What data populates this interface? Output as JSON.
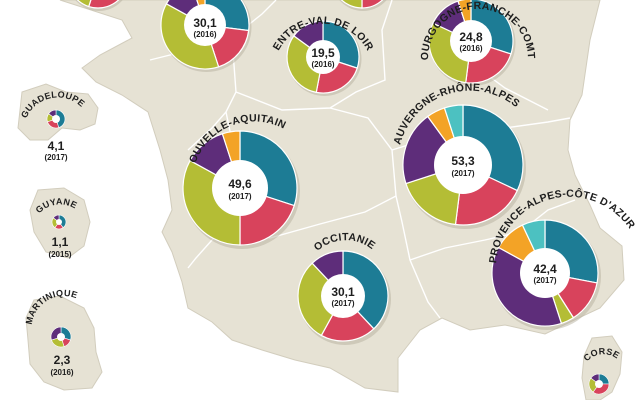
{
  "colors": {
    "background": "#ffffff",
    "land": "#e6e2d4",
    "land_stroke": "#d2cdbd",
    "border": "#ffffff",
    "segments": [
      "#1d7c95",
      "#d8435c",
      "#b4bd35",
      "#5e2d7a",
      "#f3a326",
      "#4cc1c1",
      "#9c2660"
    ]
  },
  "regions": [
    {
      "id": "nord-partial",
      "name": "",
      "value": "",
      "year": "",
      "segments": [
        0.35,
        0.2,
        0.35,
        0.1
      ]
    },
    {
      "id": "ile-de-france-partial",
      "name": "",
      "value": "",
      "year": "",
      "segments": [
        0.25,
        0.25,
        0.3,
        0.2
      ]
    },
    {
      "id": "normandie",
      "name": "",
      "value": "30,1",
      "year": "(2016)",
      "segments": [
        0.27,
        0.18,
        0.38,
        0.12,
        0.05
      ]
    },
    {
      "id": "centre-val-de-loire",
      "name": "CENTRE-VAL DE LOIRE",
      "value": "19,5",
      "year": "(2016)",
      "segments": [
        0.3,
        0.23,
        0.32,
        0.15
      ]
    },
    {
      "id": "bourgogne-franche-comte",
      "name": "BOURGOGNE-FRANCHE-COMTÉ",
      "value": "24,8",
      "year": "(2016)",
      "segments": [
        0.3,
        0.22,
        0.3,
        0.13,
        0.05
      ]
    },
    {
      "id": "nouvelle-aquitaine",
      "name": "NOUVELLE-AQUITAINE",
      "value": "49,6",
      "year": "(2017)",
      "segments": [
        0.3,
        0.2,
        0.33,
        0.12,
        0.05
      ]
    },
    {
      "id": "auvergne-rhone-alpes",
      "name": "AUVERGNE-RHÔNE-ALPES",
      "value": "53,3",
      "year": "(2017)",
      "segments": [
        0.32,
        0.2,
        0.18,
        0.2,
        0.05,
        0.05
      ]
    },
    {
      "id": "occitanie",
      "name": "OCCITANIE",
      "value": "30,1",
      "year": "(2017)",
      "segments": [
        0.38,
        0.2,
        0.3,
        0.12
      ]
    },
    {
      "id": "provence-alpes-cote-dazur",
      "name": "PROVENCE-ALPES-CÔTE D'AZUR",
      "value": "42,4",
      "year": "(2017)",
      "segments": [
        0.28,
        0.13,
        0.04,
        0.38,
        0.1,
        0.07
      ]
    },
    {
      "id": "guadeloupe",
      "name": "GUADELOUPE",
      "value": "4,1",
      "year": "(2017)",
      "segments": [
        0.45,
        0.25,
        0.15,
        0.15
      ]
    },
    {
      "id": "guyane",
      "name": "GUYANE",
      "value": "1,1",
      "year": "(2015)",
      "segments": [
        0.4,
        0.2,
        0.25,
        0.15
      ]
    },
    {
      "id": "martinique",
      "name": "MARTINIQUE",
      "value": "2,3",
      "year": "(2016)",
      "segments": [
        0.3,
        0.15,
        0.25,
        0.3
      ]
    },
    {
      "id": "corse",
      "name": "CORSE",
      "value": "",
      "year": "",
      "segments": [
        0.25,
        0.35,
        0.25,
        0.15
      ]
    }
  ]
}
